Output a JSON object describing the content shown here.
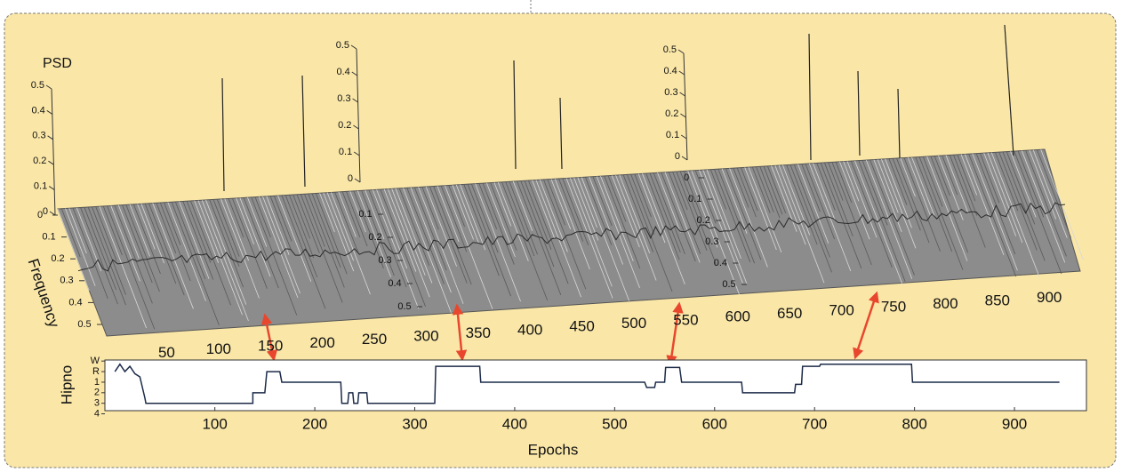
{
  "chart_data": [
    {
      "type": "waterfall",
      "ylabel": "PSD",
      "zlabel": "Frequency",
      "xlim": [
        0,
        950
      ],
      "xticks": [
        50,
        100,
        150,
        200,
        250,
        300,
        350,
        400,
        450,
        500,
        550,
        600,
        650,
        700,
        750,
        800,
        850,
        900
      ],
      "psd_axes": [
        {
          "ticks": [
            0,
            0.1,
            0.2,
            0.3,
            0.4,
            0.5
          ]
        },
        {
          "ticks": [
            0,
            0.1,
            0.2,
            0.3,
            0.4,
            0.5
          ]
        },
        {
          "ticks": [
            0,
            0.1,
            0.2,
            0.3,
            0.4,
            0.5
          ]
        }
      ],
      "freq_axes": [
        {
          "ticks": [
            0,
            0.1,
            0.2,
            0.3,
            0.4,
            0.5
          ]
        },
        {
          "ticks": [
            0.1,
            0.2,
            0.3,
            0.4,
            0.5
          ]
        },
        {
          "ticks": [
            0,
            0.1,
            0.2,
            0.3,
            0.4,
            0.5
          ]
        }
      ]
    },
    {
      "type": "line",
      "ylabel": "Hipno",
      "xlabel": "Epochs",
      "color": "#1c2b48",
      "xlim": [
        -10,
        972
      ],
      "xticks": [
        100,
        200,
        300,
        400,
        500,
        600,
        700,
        800,
        900
      ],
      "ylim": [
        4.7,
        -0.1
      ],
      "yticks": [
        {
          "value": 0,
          "label": "W"
        },
        {
          "value": 1,
          "label": "R"
        },
        {
          "value": 2,
          "label": "1"
        },
        {
          "value": 3,
          "label": "2"
        },
        {
          "value": 4,
          "label": "3"
        },
        {
          "value": 5,
          "label": "4"
        }
      ],
      "x": [
        0,
        5,
        10,
        15,
        20,
        25,
        30,
        31,
        138,
        138,
        150,
        152,
        165,
        167,
        226,
        227,
        233,
        234,
        238,
        239,
        243,
        244,
        252,
        253,
        258,
        320,
        321,
        365,
        366,
        530,
        532,
        540,
        541,
        550,
        551,
        565,
        567,
        627,
        628,
        680,
        681,
        687,
        688,
        705,
        706,
        797,
        798,
        945
      ],
      "values": [
        1,
        0.3,
        1,
        0.5,
        1.2,
        1.5,
        3.5,
        4,
        4,
        3,
        3,
        1,
        1,
        2,
        2,
        4,
        4,
        3,
        3,
        4,
        4,
        3,
        3,
        4,
        4,
        4,
        0.5,
        0.5,
        2,
        2,
        2.5,
        2.5,
        2,
        2,
        0.6,
        0.6,
        2,
        2,
        3,
        3,
        2.2,
        2.2,
        0.5,
        0.5,
        0.3,
        0.3,
        2,
        2
      ]
    }
  ]
}
